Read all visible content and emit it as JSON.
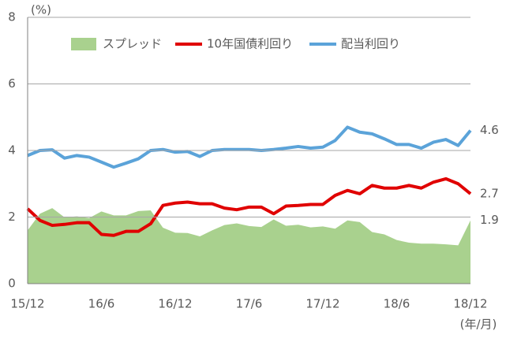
{
  "chart_data": {
    "type": "line",
    "y_unit": "(%)",
    "x_unit": "(年/月)",
    "categories": [
      "15/12",
      null,
      null,
      null,
      null,
      null,
      "16/6",
      null,
      null,
      null,
      null,
      null,
      "16/12",
      null,
      null,
      null,
      null,
      null,
      "17/6",
      null,
      null,
      null,
      null,
      null,
      "17/12",
      null,
      null,
      null,
      null,
      null,
      "18/6",
      null,
      null,
      null,
      null,
      null,
      "18/12"
    ],
    "ylim": [
      0,
      8
    ],
    "yticks": [
      0,
      2,
      4,
      6,
      8
    ],
    "grid": true,
    "legend": "top",
    "series": [
      {
        "name": "スプレッド",
        "color": "#a9d18e",
        "fill": true,
        "values": [
          1.6,
          2.1,
          2.27,
          1.99,
          2.02,
          1.97,
          2.17,
          2.05,
          2.05,
          2.18,
          2.2,
          1.68,
          1.53,
          1.52,
          1.42,
          1.6,
          1.76,
          1.81,
          1.73,
          1.7,
          1.93,
          1.74,
          1.77,
          1.69,
          1.72,
          1.65,
          1.9,
          1.85,
          1.55,
          1.48,
          1.31,
          1.23,
          1.2,
          1.2,
          1.18,
          1.15,
          1.9
        ]
      },
      {
        "name": "10年国債利回り",
        "color": "#e00000",
        "fill": false,
        "values": [
          2.25,
          1.9,
          1.75,
          1.78,
          1.83,
          1.83,
          1.48,
          1.45,
          1.57,
          1.57,
          1.8,
          2.35,
          2.42,
          2.45,
          2.4,
          2.4,
          2.27,
          2.22,
          2.3,
          2.3,
          2.1,
          2.33,
          2.35,
          2.38,
          2.38,
          2.65,
          2.8,
          2.7,
          2.95,
          2.87,
          2.87,
          2.95,
          2.87,
          3.05,
          3.15,
          3.0,
          2.7
        ]
      },
      {
        "name": "配当利回り",
        "color": "#5ba3d9",
        "fill": false,
        "values": [
          3.85,
          4.0,
          4.02,
          3.77,
          3.85,
          3.8,
          3.65,
          3.5,
          3.62,
          3.75,
          4.0,
          4.03,
          3.95,
          3.97,
          3.82,
          4.0,
          4.03,
          4.03,
          4.03,
          4.0,
          4.03,
          4.07,
          4.12,
          4.07,
          4.1,
          4.3,
          4.7,
          4.55,
          4.5,
          4.35,
          4.18,
          4.18,
          4.07,
          4.25,
          4.33,
          4.15,
          4.6
        ]
      }
    ]
  }
}
